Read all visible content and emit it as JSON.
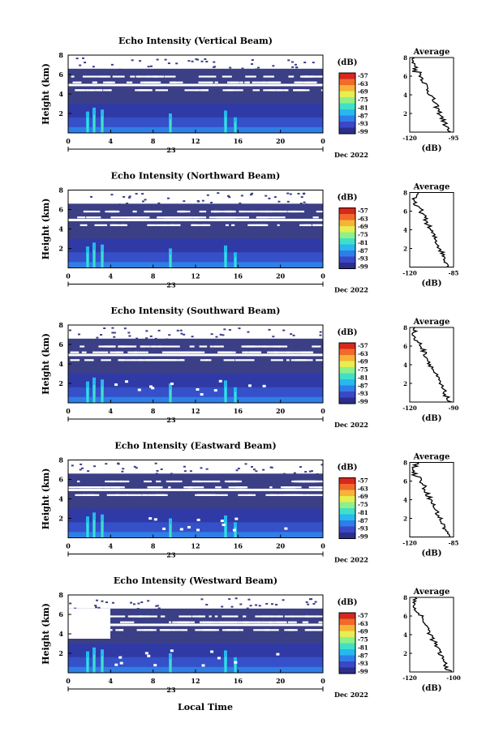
{
  "chart_data": [
    {
      "type": "heatmap",
      "title": "Echo Intensity (Vertical Beam)",
      "ylabel": "Height (km)",
      "xticks": [
        "0",
        "4",
        "8",
        "12",
        "16",
        "20",
        "0"
      ],
      "ylim": [
        0,
        8
      ],
      "yticks": [
        "2",
        "4",
        "6",
        "8"
      ],
      "day_label": "23",
      "date_label": "Dec 2022",
      "colorbar": {
        "unit": "(dB)",
        "ticks": [
          "-57",
          "-63",
          "-69",
          "-75",
          "-81",
          "-87",
          "-93",
          "-99"
        ]
      },
      "profile": {
        "title": "Average",
        "xlabel": "(dB)",
        "xticks": [
          "-120",
          "-95"
        ],
        "yticks": [
          "2",
          "4",
          "6",
          "8"
        ]
      }
    },
    {
      "type": "heatmap",
      "title": "Echo Intensity (Northward Beam)",
      "ylabel": "Height (km)",
      "xticks": [
        "0",
        "4",
        "8",
        "12",
        "16",
        "20",
        "0"
      ],
      "ylim": [
        0,
        8
      ],
      "yticks": [
        "2",
        "4",
        "6",
        "8"
      ],
      "day_label": "23",
      "date_label": "Dec 2022",
      "colorbar": {
        "unit": "(dB)",
        "ticks": [
          "-57",
          "-63",
          "-69",
          "-75",
          "-81",
          "-87",
          "-93",
          "-99"
        ]
      },
      "profile": {
        "title": "Average",
        "xlabel": "(dB)",
        "xticks": [
          "-120",
          "-85"
        ],
        "yticks": [
          "2",
          "4",
          "6",
          "8"
        ]
      }
    },
    {
      "type": "heatmap",
      "title": "Echo Intensity (Southward Beam)",
      "ylabel": "Height (km)",
      "xticks": [
        "0",
        "4",
        "8",
        "12",
        "16",
        "20",
        "0"
      ],
      "ylim": [
        0,
        8
      ],
      "yticks": [
        "2",
        "4",
        "6",
        "8"
      ],
      "day_label": "23",
      "date_label": "Dec 2022",
      "colorbar": {
        "unit": "(dB)",
        "ticks": [
          "-57",
          "-63",
          "-69",
          "-75",
          "-81",
          "-87",
          "-93",
          "-99"
        ]
      },
      "profile": {
        "title": "Average",
        "xlabel": "(dB)",
        "xticks": [
          "-120",
          "-90"
        ],
        "yticks": [
          "2",
          "4",
          "6",
          "8"
        ]
      }
    },
    {
      "type": "heatmap",
      "title": "Echo Intensity (Eastward Beam)",
      "ylabel": "Height (km)",
      "xticks": [
        "0",
        "4",
        "8",
        "12",
        "16",
        "20",
        "0"
      ],
      "ylim": [
        0,
        8
      ],
      "yticks": [
        "2",
        "4",
        "6",
        "8"
      ],
      "day_label": "23",
      "date_label": "Dec 2022",
      "colorbar": {
        "unit": "(dB)",
        "ticks": [
          "-57",
          "-63",
          "-69",
          "-75",
          "-81",
          "-87",
          "-93",
          "-99"
        ]
      },
      "profile": {
        "title": "Average",
        "xlabel": "(dB)",
        "xticks": [
          "-120",
          "-85"
        ],
        "yticks": [
          "2",
          "4",
          "6",
          "8"
        ]
      }
    },
    {
      "type": "heatmap",
      "title": "Echo Intensity (Westward Beam)",
      "ylabel": "Height (km)",
      "xticks": [
        "0",
        "4",
        "8",
        "12",
        "16",
        "20",
        "0"
      ],
      "ylim": [
        0,
        8
      ],
      "yticks": [
        "2",
        "4",
        "6",
        "8"
      ],
      "day_label": "23",
      "date_label": "Dec 2022",
      "colorbar": {
        "unit": "(dB)",
        "ticks": [
          "-57",
          "-63",
          "-69",
          "-75",
          "-81",
          "-87",
          "-93",
          "-99"
        ]
      },
      "profile": {
        "title": "Average",
        "xlabel": "(dB)",
        "xticks": [
          "-120",
          "-100"
        ],
        "yticks": [
          "2",
          "4",
          "6",
          "8"
        ]
      }
    }
  ],
  "xlabel_bottom": "Local Time",
  "colors": {
    "background_echo": "#3b3f86",
    "colormap": [
      "#2b2f8a",
      "#3a48c8",
      "#2f7ee8",
      "#27b8ef",
      "#40e0c8",
      "#8ef08a",
      "#e6ee50",
      "#f7b238",
      "#f26a2a",
      "#d7281e"
    ]
  }
}
